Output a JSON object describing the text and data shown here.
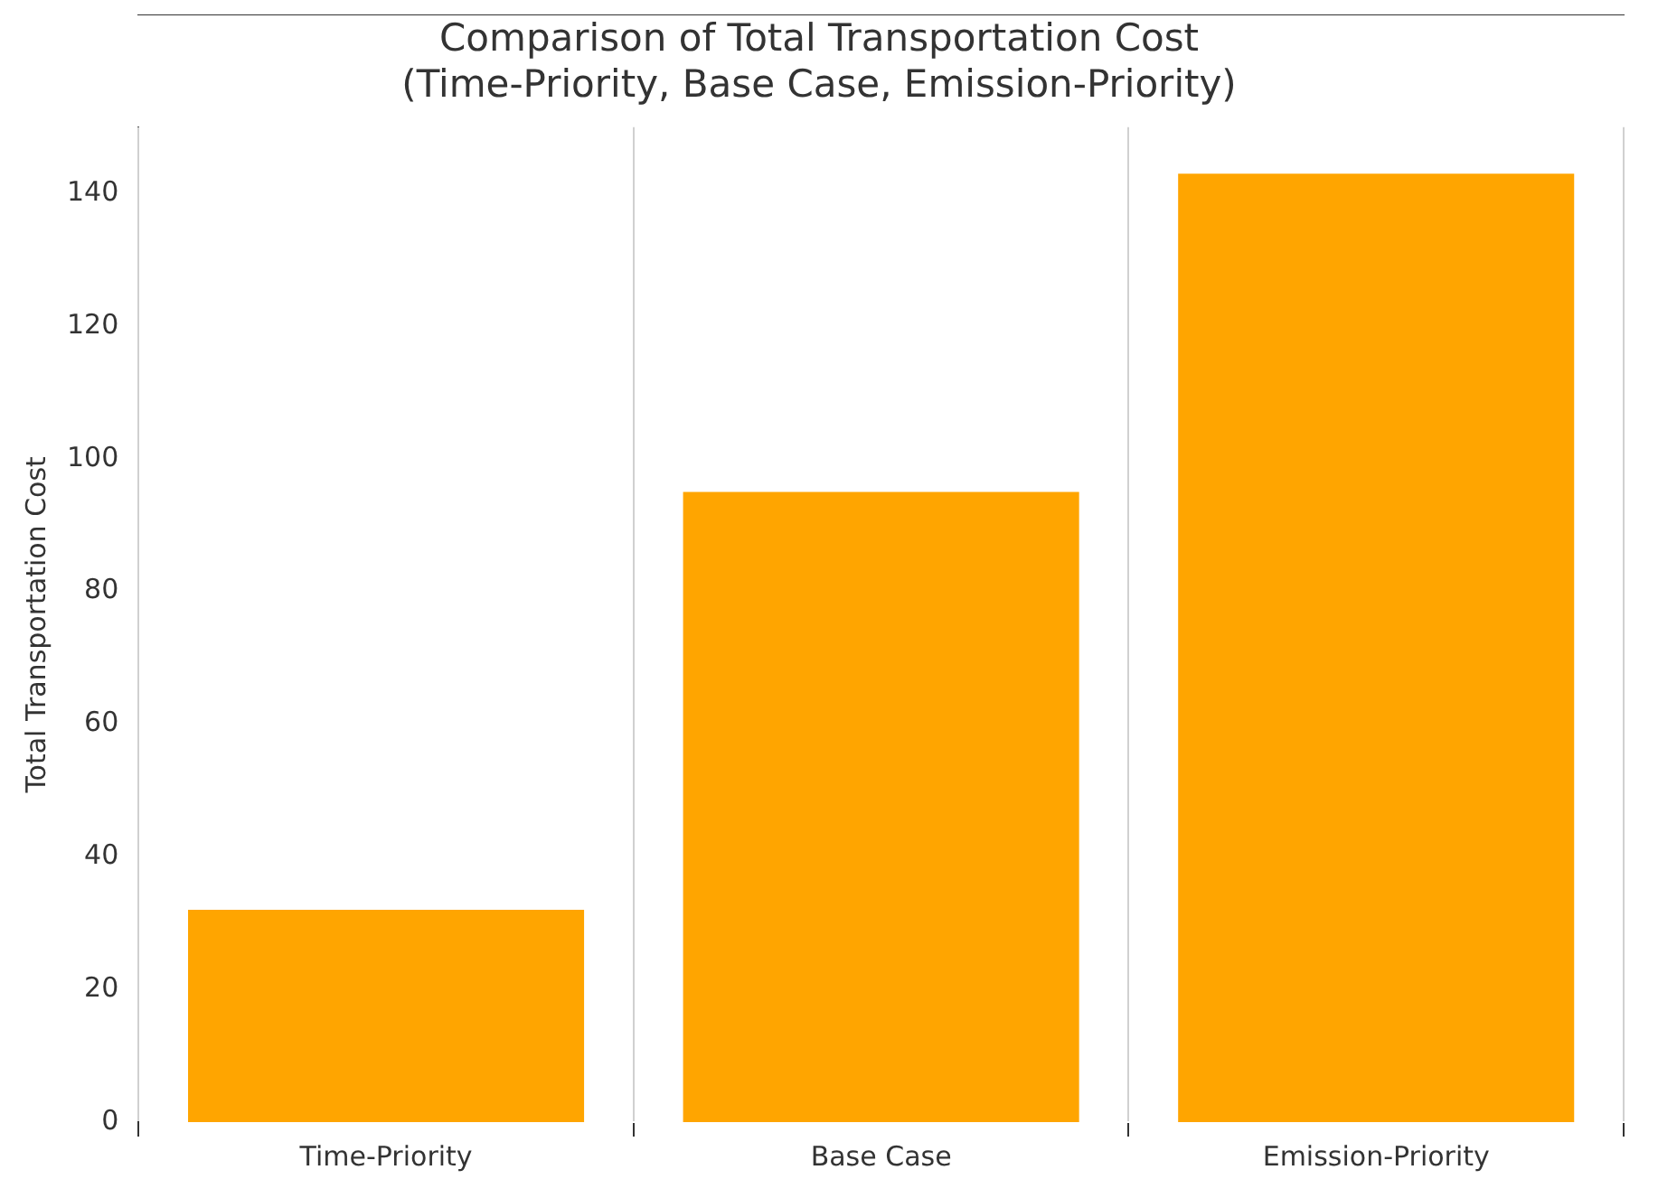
{
  "chart_data": {
    "type": "bar",
    "title": "Comparison of Total Transportation Cost\n(Time-Priority, Base Case, Emission-Priority)",
    "ylabel": "Total Transportation Cost",
    "categories": [
      "Time-Priority",
      "Base Case",
      "Emission-Priority"
    ],
    "values": [
      32,
      95,
      143
    ],
    "color": "#ffa500",
    "ylim": [
      0,
      150
    ],
    "yticks": [
      0,
      20,
      40,
      60,
      80,
      100,
      120,
      140
    ],
    "grid": "x"
  }
}
